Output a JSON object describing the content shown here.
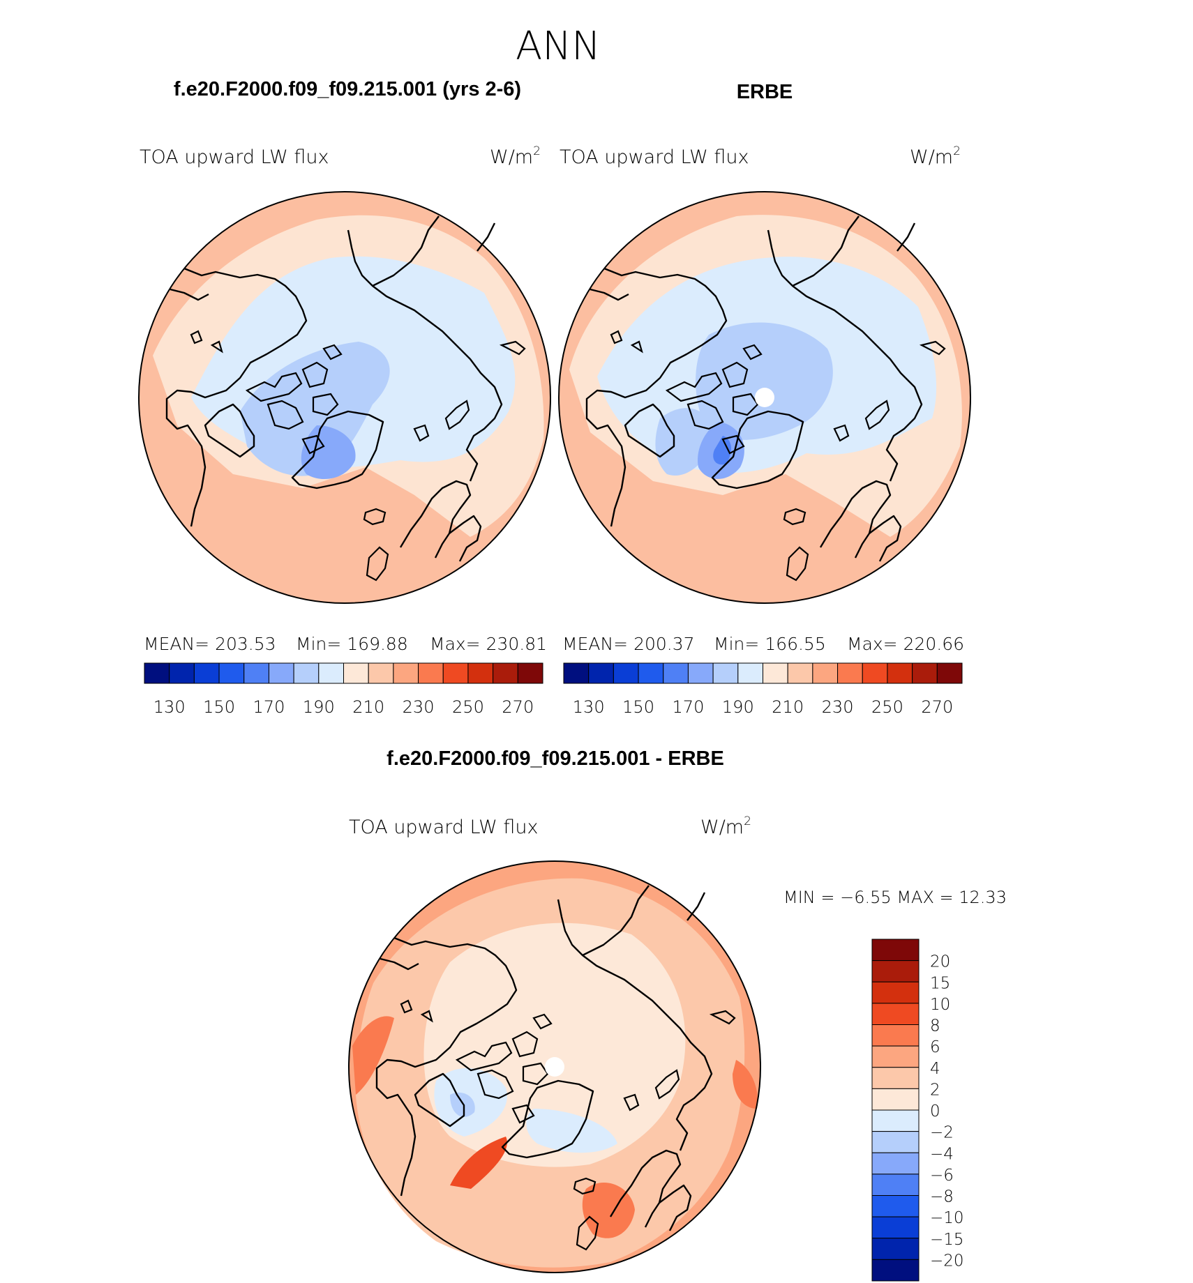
{
  "figure": {
    "season": "ANN",
    "units_text": "W/m",
    "units_sup": "2",
    "variable_label": "TOA upward LW flux"
  },
  "panels": [
    {
      "title": "f.e20.F2000.f09_f09.215.001 (yrs 2-6)",
      "stats": {
        "mean_label": "MEAN=",
        "mean": "203.53",
        "min_label": "Min=",
        "min": "169.88",
        "max_label": "Max=",
        "max": "230.81"
      }
    },
    {
      "title": "ERBE",
      "stats": {
        "mean_label": "MEAN=",
        "mean": "200.37",
        "min_label": "Min=",
        "min": "166.55",
        "max_label": "Max=",
        "max": "220.66"
      }
    }
  ],
  "diff_panel": {
    "title": "f.e20.F2000.f09_f09.215.001 - ERBE",
    "min_label": "MIN =",
    "min": "−6.55",
    "max_label": "MAX =",
    "max": "12.33"
  },
  "colorbars": {
    "abs": {
      "colors": [
        "#000f7f",
        "#0024ad",
        "#0a3ed6",
        "#1f5bed",
        "#4f80f5",
        "#87a9fa",
        "#b5cffb",
        "#dbecfd",
        "#fde8d8",
        "#fcc8aa",
        "#fca680",
        "#fa7a4f",
        "#ef4a22",
        "#d3300e",
        "#aa1c0b",
        "#7e0808"
      ],
      "ticks": [
        "130",
        "150",
        "170",
        "190",
        "210",
        "230",
        "250",
        "270"
      ]
    },
    "diff": {
      "colors": [
        "#000f7f",
        "#0024ad",
        "#0a3ed6",
        "#1f5bed",
        "#4f80f5",
        "#87a9fa",
        "#b5cffb",
        "#dbecfd",
        "#fde8d8",
        "#fcc8aa",
        "#fca680",
        "#fa7a4f",
        "#ef4a22",
        "#d3300e",
        "#aa1c0b",
        "#7e0808"
      ],
      "labels": [
        "20",
        "15",
        "10",
        "8",
        "6",
        "4",
        "2",
        "0",
        "−2",
        "−4",
        "−6",
        "−8",
        "−10",
        "−15",
        "−20"
      ]
    }
  }
}
